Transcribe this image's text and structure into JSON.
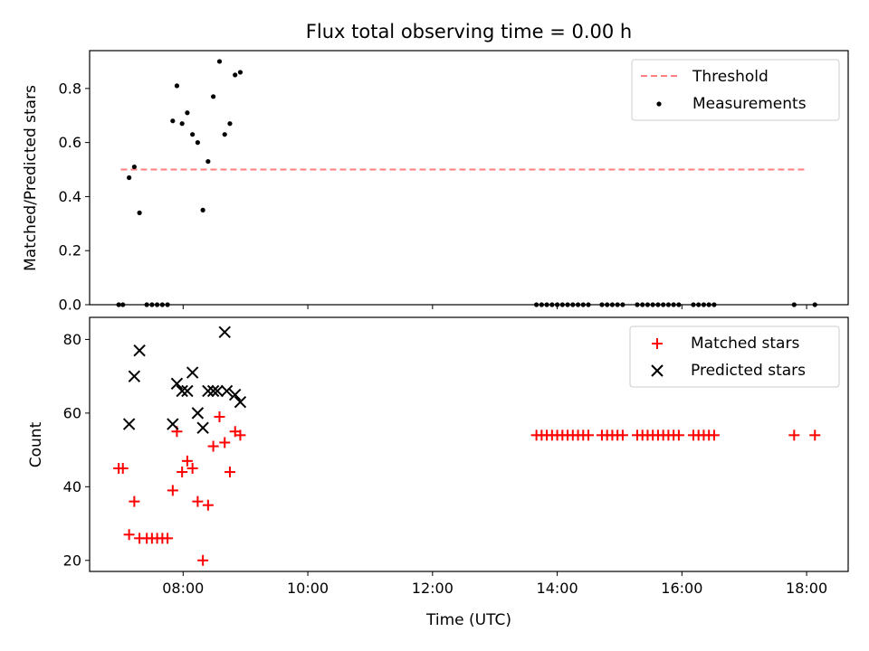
{
  "figure_title": "Flux total observing time = 0.00 h",
  "colors": {
    "threshold": "#ff7f7f",
    "measurements": "#000000",
    "matched": "#ff0000",
    "predicted": "#000000"
  },
  "chart_data": [
    {
      "type": "scatter",
      "title": "Flux total observing time = 0.00 h",
      "ylabel": "Matched/Predicted stars",
      "xlabel": "",
      "xlim": [
        "06:30",
        "18:40"
      ],
      "ylim": [
        0,
        0.94
      ],
      "x_ticks": [
        "08:00",
        "10:00",
        "12:00",
        "14:00",
        "16:00",
        "18:00"
      ],
      "y_ticks": [
        "0.0",
        "0.2",
        "0.4",
        "0.6",
        "0.8"
      ],
      "legend_position": "top-right",
      "threshold": {
        "name": "Threshold",
        "x": [
          "07:00",
          "18:00"
        ],
        "value": 0.5,
        "style": "dashed"
      },
      "series": [
        {
          "name": "Measurements",
          "marker": "dot",
          "points": [
            [
              "06:58",
              0.0
            ],
            [
              "07:02",
              0.0
            ],
            [
              "07:08",
              0.47
            ],
            [
              "07:13",
              0.51
            ],
            [
              "07:18",
              0.34
            ],
            [
              "07:25",
              0.0
            ],
            [
              "07:30",
              0.0
            ],
            [
              "07:35",
              0.0
            ],
            [
              "07:40",
              0.0
            ],
            [
              "07:45",
              0.0
            ],
            [
              "07:50",
              0.68
            ],
            [
              "07:54",
              0.81
            ],
            [
              "07:59",
              0.67
            ],
            [
              "08:04",
              0.71
            ],
            [
              "08:09",
              0.63
            ],
            [
              "08:14",
              0.6
            ],
            [
              "08:19",
              0.35
            ],
            [
              "08:24",
              0.53
            ],
            [
              "08:29",
              0.77
            ],
            [
              "08:35",
              0.9
            ],
            [
              "08:40",
              0.63
            ],
            [
              "08:45",
              0.67
            ],
            [
              "08:50",
              0.85
            ],
            [
              "08:55",
              0.86
            ],
            [
              "13:40",
              0.0
            ],
            [
              "13:45",
              0.0
            ],
            [
              "13:50",
              0.0
            ],
            [
              "13:55",
              0.0
            ],
            [
              "14:00",
              0.0
            ],
            [
              "14:05",
              0.0
            ],
            [
              "14:10",
              0.0
            ],
            [
              "14:15",
              0.0
            ],
            [
              "14:20",
              0.0
            ],
            [
              "14:25",
              0.0
            ],
            [
              "14:30",
              0.0
            ],
            [
              "14:43",
              0.0
            ],
            [
              "14:48",
              0.0
            ],
            [
              "14:53",
              0.0
            ],
            [
              "14:58",
              0.0
            ],
            [
              "15:03",
              0.0
            ],
            [
              "15:17",
              0.0
            ],
            [
              "15:22",
              0.0
            ],
            [
              "15:27",
              0.0
            ],
            [
              "15:32",
              0.0
            ],
            [
              "15:37",
              0.0
            ],
            [
              "15:42",
              0.0
            ],
            [
              "15:47",
              0.0
            ],
            [
              "15:52",
              0.0
            ],
            [
              "15:57",
              0.0
            ],
            [
              "16:11",
              0.0
            ],
            [
              "16:16",
              0.0
            ],
            [
              "16:21",
              0.0
            ],
            [
              "16:26",
              0.0
            ],
            [
              "16:31",
              0.0
            ],
            [
              "17:48",
              0.0
            ],
            [
              "18:08",
              0.0
            ]
          ]
        }
      ]
    },
    {
      "type": "scatter",
      "title": "",
      "ylabel": "Count",
      "xlabel": "Time (UTC)",
      "xlim": [
        "06:30",
        "18:40"
      ],
      "ylim": [
        17,
        86
      ],
      "x_ticks": [
        "08:00",
        "10:00",
        "12:00",
        "14:00",
        "16:00",
        "18:00"
      ],
      "y_ticks": [
        "20",
        "40",
        "60",
        "80"
      ],
      "legend_position": "top-right",
      "series": [
        {
          "name": "Matched stars",
          "marker": "plus",
          "points": [
            [
              "06:58",
              45
            ],
            [
              "07:02",
              45
            ],
            [
              "07:08",
              27
            ],
            [
              "07:13",
              36
            ],
            [
              "07:18",
              26
            ],
            [
              "07:25",
              26
            ],
            [
              "07:30",
              26
            ],
            [
              "07:35",
              26
            ],
            [
              "07:40",
              26
            ],
            [
              "07:45",
              26
            ],
            [
              "07:50",
              39
            ],
            [
              "07:54",
              55
            ],
            [
              "07:59",
              44
            ],
            [
              "08:04",
              47
            ],
            [
              "08:09",
              45
            ],
            [
              "08:14",
              36
            ],
            [
              "08:19",
              20
            ],
            [
              "08:24",
              35
            ],
            [
              "08:29",
              51
            ],
            [
              "08:35",
              59
            ],
            [
              "08:40",
              52
            ],
            [
              "08:45",
              44
            ],
            [
              "08:50",
              55
            ],
            [
              "08:55",
              54
            ],
            [
              "13:40",
              54
            ],
            [
              "13:45",
              54
            ],
            [
              "13:50",
              54
            ],
            [
              "13:55",
              54
            ],
            [
              "14:00",
              54
            ],
            [
              "14:05",
              54
            ],
            [
              "14:10",
              54
            ],
            [
              "14:15",
              54
            ],
            [
              "14:20",
              54
            ],
            [
              "14:25",
              54
            ],
            [
              "14:30",
              54
            ],
            [
              "14:43",
              54
            ],
            [
              "14:48",
              54
            ],
            [
              "14:53",
              54
            ],
            [
              "14:58",
              54
            ],
            [
              "15:03",
              54
            ],
            [
              "15:17",
              54
            ],
            [
              "15:22",
              54
            ],
            [
              "15:27",
              54
            ],
            [
              "15:32",
              54
            ],
            [
              "15:37",
              54
            ],
            [
              "15:42",
              54
            ],
            [
              "15:47",
              54
            ],
            [
              "15:52",
              54
            ],
            [
              "15:57",
              54
            ],
            [
              "16:11",
              54
            ],
            [
              "16:16",
              54
            ],
            [
              "16:21",
              54
            ],
            [
              "16:26",
              54
            ],
            [
              "16:31",
              54
            ],
            [
              "17:48",
              54
            ],
            [
              "18:08",
              54
            ]
          ]
        },
        {
          "name": "Predicted stars",
          "marker": "x",
          "points": [
            [
              "07:08",
              57
            ],
            [
              "07:13",
              70
            ],
            [
              "07:18",
              77
            ],
            [
              "07:50",
              57
            ],
            [
              "07:54",
              68
            ],
            [
              "07:59",
              66
            ],
            [
              "08:04",
              66
            ],
            [
              "08:09",
              71
            ],
            [
              "08:14",
              60
            ],
            [
              "08:19",
              56
            ],
            [
              "08:24",
              66
            ],
            [
              "08:29",
              66
            ],
            [
              "08:33",
              66
            ],
            [
              "08:40",
              82
            ],
            [
              "08:42",
              66
            ],
            [
              "08:50",
              65
            ],
            [
              "08:55",
              63
            ]
          ]
        }
      ]
    }
  ]
}
